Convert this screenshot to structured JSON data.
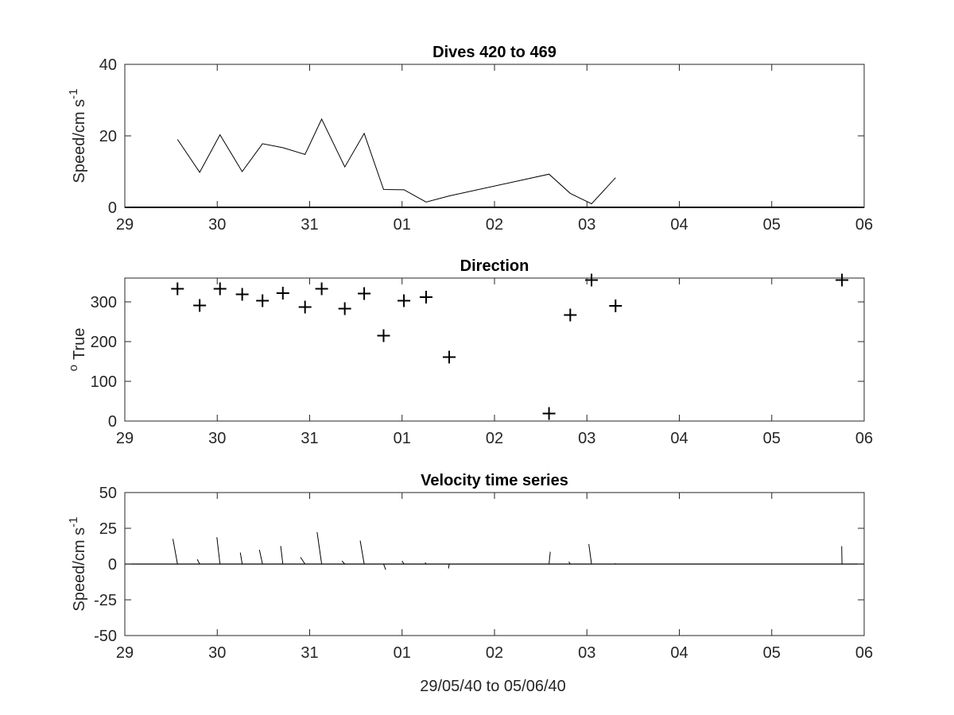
{
  "colors": {
    "background": "#ffffff",
    "axes": "#262626",
    "data": "#000000"
  },
  "figure": {
    "xlabel": "29/05/40 to 05/06/40"
  },
  "chart_data": [
    {
      "type": "line",
      "title": "Dives 420 to 469",
      "ylabel_main": "Speed/cm s",
      "ylabel_sup": "-1",
      "xlabel": "",
      "xlim": [
        29,
        37
      ],
      "ylim": [
        0,
        40
      ],
      "xticks": [
        29,
        30,
        31,
        32,
        33,
        34,
        35,
        36,
        37
      ],
      "xtick_labels": [
        "29",
        "30",
        "31",
        "01",
        "02",
        "03",
        "04",
        "05",
        "06"
      ],
      "yticks": [
        0,
        20,
        40
      ],
      "ytick_labels": [
        "0",
        "20",
        "40"
      ],
      "grid": false,
      "zero_line": true,
      "series": [
        {
          "x": [
            29.57,
            29.81,
            30.03,
            30.27,
            30.49,
            30.71,
            30.95,
            31.13,
            31.38,
            31.59,
            31.8,
            32.02,
            32.26,
            32.51,
            33.59,
            33.82,
            34.05,
            34.31
          ],
          "y": [
            19,
            9.8,
            20.3,
            10,
            17.8,
            16.7,
            14.8,
            24.7,
            11.3,
            20.7,
            5,
            4.9,
            1.5,
            3.2,
            9.3,
            3.9,
            1,
            8.3
          ]
        }
      ]
    },
    {
      "type": "scatter",
      "title": "Direction",
      "ylabel_main": "True",
      "ylabel_sup": "o",
      "xlabel": "",
      "xlim": [
        29,
        37
      ],
      "ylim": [
        0,
        360
      ],
      "xticks": [
        29,
        30,
        31,
        32,
        33,
        34,
        35,
        36,
        37
      ],
      "xtick_labels": [
        "29",
        "30",
        "31",
        "01",
        "02",
        "03",
        "04",
        "05",
        "06"
      ],
      "yticks": [
        0,
        100,
        200,
        300
      ],
      "ytick_labels": [
        "0",
        "100",
        "200",
        "300"
      ],
      "grid": false,
      "marker": "+",
      "series": [
        {
          "x": [
            29.57,
            29.81,
            30.03,
            30.27,
            30.49,
            30.71,
            30.95,
            31.13,
            31.38,
            31.59,
            31.8,
            32.02,
            32.26,
            32.51,
            33.59,
            33.82,
            34.05,
            34.31,
            36.76
          ],
          "y": [
            333,
            291,
            333,
            319,
            303,
            322,
            287,
            333,
            283,
            321,
            215,
            303,
            312,
            161,
            19,
            267,
            355,
            290,
            355
          ]
        }
      ]
    },
    {
      "type": "line",
      "subtype": "stick",
      "title": "Velocity time series",
      "ylabel_main": "Speed/cm s",
      "ylabel_sup": "-1",
      "xlabel": "29/05/40 to 05/06/40",
      "xlim": [
        29,
        37
      ],
      "ylim": [
        -50,
        50
      ],
      "xticks": [
        29,
        30,
        31,
        32,
        33,
        34,
        35,
        36,
        37
      ],
      "xtick_labels": [
        "29",
        "30",
        "31",
        "01",
        "02",
        "03",
        "04",
        "05",
        "06"
      ],
      "yticks": [
        -50,
        -25,
        0,
        25,
        50
      ],
      "ytick_labels": [
        "-50",
        "-25",
        "0",
        "25",
        "50"
      ],
      "grid": false,
      "zero_line": true,
      "series": [
        {
          "x": [
            29.57,
            29.81,
            30.03,
            30.27,
            30.49,
            30.71,
            30.95,
            31.13,
            31.38,
            31.59,
            31.8,
            32.02,
            32.26,
            32.51,
            33.59,
            33.82,
            34.05,
            34.31,
            36.76
          ],
          "u": [
            -3.2,
            -1.7,
            -2.2,
            -1.3,
            -2.2,
            -1.5,
            -3.2,
            -3.2,
            -2.0,
            -2.8,
            1.5,
            -1.3,
            -0.7,
            -0.5,
            0.9,
            -1.0,
            -1.9,
            -0.3,
            -0.2
          ],
          "v": [
            17.6,
            3.3,
            18.8,
            8.0,
            10.0,
            12.6,
            4.8,
            22.3,
            2.2,
            16.4,
            -4.0,
            2.2,
            1.1,
            -3.1,
            8.6,
            1.6,
            14.0,
            0.5,
            12.5
          ]
        }
      ]
    }
  ]
}
